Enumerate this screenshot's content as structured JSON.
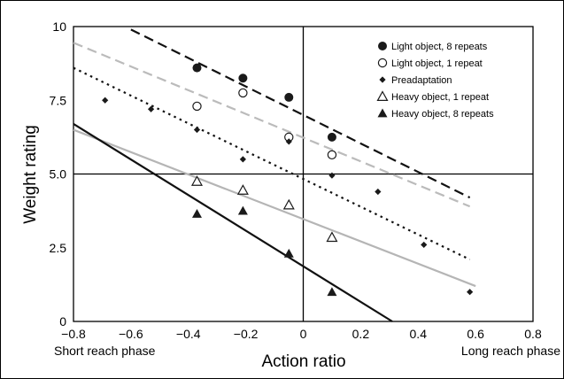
{
  "chart_data": {
    "type": "scatter",
    "xlabel": "Action ratio",
    "ylabel": "Weight rating",
    "xlim": [
      -0.8,
      0.8
    ],
    "ylim": [
      0,
      10
    ],
    "x_ticks": [
      "−0.8",
      "−0.6",
      "−0.4",
      "−0.2",
      "0",
      "0.2",
      "0.4",
      "0.6",
      "0.8"
    ],
    "y_ticks": [
      "0",
      "2.5",
      "5.0",
      "7.5",
      "10"
    ],
    "x_tick_values": [
      -0.8,
      -0.6,
      -0.4,
      -0.2,
      0,
      0.2,
      0.4,
      0.6,
      0.8
    ],
    "y_tick_values": [
      0,
      2.5,
      5,
      7.5,
      10
    ],
    "annotations": {
      "left": "Short reach phase",
      "right": "Long reach phase"
    },
    "reference_lines": {
      "x": 0,
      "y": 5
    },
    "legend_position": "top-right",
    "series": [
      {
        "name": "Light object, 8 repeats",
        "marker": "circle-filled",
        "color": "#1a1a1a",
        "points": [
          [
            -0.37,
            8.6
          ],
          [
            -0.21,
            8.25
          ],
          [
            -0.05,
            7.6
          ],
          [
            0.1,
            6.25
          ]
        ],
        "fit": {
          "from": [
            -0.6,
            9.9
          ],
          "to": [
            0.58,
            4.2
          ],
          "dash": "dash",
          "color": "#111111"
        }
      },
      {
        "name": "Light object, 1 repeat",
        "marker": "circle-open",
        "color": "#1a1a1a",
        "points": [
          [
            -0.37,
            7.3
          ],
          [
            -0.21,
            7.75
          ],
          [
            -0.05,
            6.25
          ],
          [
            0.1,
            5.65
          ]
        ],
        "fit": {
          "from": [
            -0.8,
            9.45
          ],
          "to": [
            0.58,
            3.9
          ],
          "dash": "dash",
          "color": "#bbbbbb"
        }
      },
      {
        "name": "Preadaptation",
        "marker": "diamond",
        "color": "#1a1a1a",
        "points": [
          [
            -0.69,
            7.5
          ],
          [
            -0.53,
            7.2
          ],
          [
            -0.37,
            6.5
          ],
          [
            -0.21,
            5.5
          ],
          [
            -0.05,
            6.1
          ],
          [
            0.1,
            4.95
          ],
          [
            0.26,
            4.4
          ],
          [
            0.42,
            2.6
          ],
          [
            0.58,
            1.0
          ]
        ],
        "fit": {
          "from": [
            -0.8,
            8.6
          ],
          "to": [
            0.58,
            2.1
          ],
          "dash": "dot",
          "color": "#111111"
        }
      },
      {
        "name": "Heavy object, 1 repeat",
        "marker": "triangle-open",
        "color": "#1a1a1a",
        "points": [
          [
            -0.37,
            4.75
          ],
          [
            -0.21,
            4.45
          ],
          [
            -0.05,
            3.95
          ],
          [
            0.1,
            2.85
          ]
        ],
        "fit": {
          "from": [
            -0.8,
            6.5
          ],
          "to": [
            0.6,
            1.2
          ],
          "dash": "solid",
          "color": "#b5b5b5"
        }
      },
      {
        "name": "Heavy object, 8 repeats",
        "marker": "triangle-filled",
        "color": "#1a1a1a",
        "points": [
          [
            -0.37,
            3.65
          ],
          [
            -0.21,
            3.75
          ],
          [
            -0.05,
            2.3
          ],
          [
            0.1,
            1.0
          ]
        ],
        "fit": {
          "from": [
            -0.8,
            6.7
          ],
          "to": [
            0.31,
            0
          ],
          "dash": "solid",
          "color": "#111111"
        }
      }
    ]
  }
}
